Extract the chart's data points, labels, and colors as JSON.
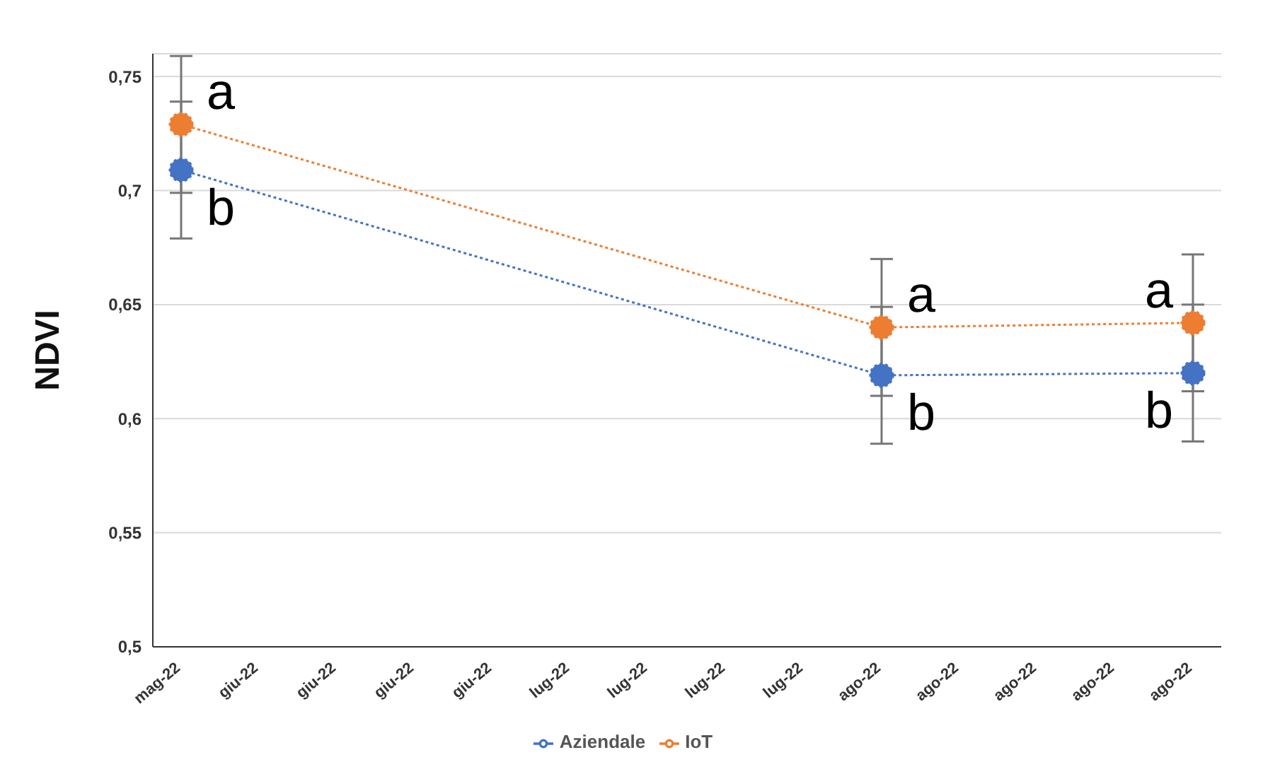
{
  "chart_data": {
    "type": "line",
    "ylabel": "NDVI",
    "categories": [
      "mag-22",
      "giu-22",
      "giu-22",
      "giu-22",
      "giu-22",
      "lug-22",
      "lug-22",
      "lug-22",
      "lug-22",
      "ago-22",
      "ago-22",
      "ago-22",
      "ago-22",
      "ago-22"
    ],
    "series": [
      {
        "name": "IoT",
        "color": "#ed7d31",
        "values": [
          0.729,
          null,
          null,
          null,
          null,
          null,
          null,
          null,
          null,
          0.64,
          null,
          null,
          null,
          0.642
        ],
        "errors": [
          0.03,
          null,
          null,
          null,
          null,
          null,
          null,
          null,
          null,
          0.03,
          null,
          null,
          null,
          0.03
        ]
      },
      {
        "name": "Aziendale",
        "color": "#4472c4",
        "values": [
          0.709,
          null,
          null,
          null,
          null,
          null,
          null,
          null,
          null,
          0.619,
          null,
          null,
          null,
          0.62
        ],
        "errors": [
          0.03,
          null,
          null,
          null,
          null,
          null,
          null,
          null,
          null,
          0.03,
          null,
          null,
          null,
          0.03
        ]
      }
    ],
    "ylim": [
      0.5,
      0.76
    ],
    "yticks": [
      {
        "value": 0.5,
        "label": "0,5"
      },
      {
        "value": 0.55,
        "label": "0,55"
      },
      {
        "value": 0.6,
        "label": "0,6"
      },
      {
        "value": 0.65,
        "label": "0,65"
      },
      {
        "value": 0.7,
        "label": "0,7"
      },
      {
        "value": 0.75,
        "label": "0,75"
      }
    ],
    "grid": "y",
    "legend": "bottom",
    "marker": "circle",
    "line_style": "dotted",
    "annotations": [
      "a",
      "b",
      "a",
      "b",
      "a",
      "b"
    ]
  }
}
